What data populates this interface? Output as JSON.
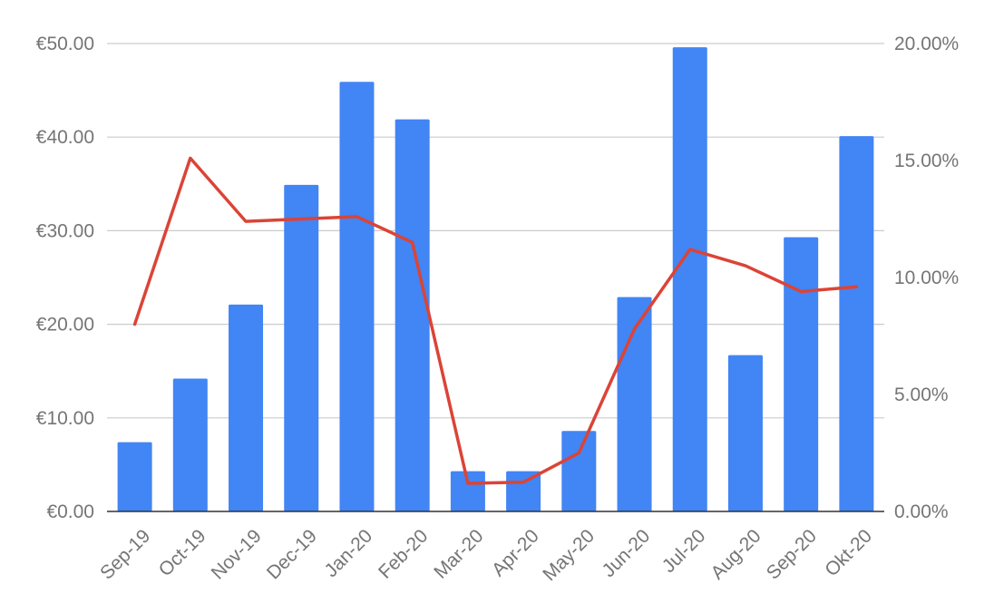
{
  "chart_data": {
    "type": "bar",
    "title": "",
    "categories": [
      "Sep-19",
      "Oct-19",
      "Nov-19",
      "Dec-19",
      "Jan-20",
      "Feb-20",
      "Mar-20",
      "Apr-20",
      "May-20",
      "Jun-20",
      "Jul-20",
      "Aug-20",
      "Sep-20",
      "Okt-20"
    ],
    "series": [
      {
        "type": "bar",
        "axis": "left",
        "color": "#4285f4",
        "values": [
          7.4,
          14.2,
          22.1,
          34.9,
          45.9,
          41.9,
          4.3,
          4.3,
          8.6,
          22.9,
          49.6,
          16.7,
          29.3,
          40.1
        ]
      },
      {
        "type": "line",
        "axis": "right",
        "color": "#db4437",
        "values": [
          8.0,
          15.1,
          12.4,
          12.5,
          12.6,
          11.5,
          1.2,
          1.25,
          2.5,
          7.8,
          11.2,
          10.5,
          9.4,
          9.6
        ]
      }
    ],
    "y_left": {
      "ylim": [
        0,
        50
      ],
      "ticks": [
        0,
        10,
        20,
        30,
        40,
        50
      ],
      "tick_labels": [
        "€0.00",
        "€10.00",
        "€20.00",
        "€30.00",
        "€40.00",
        "€50.00"
      ]
    },
    "y_right": {
      "ylim": [
        0,
        20
      ],
      "ticks": [
        0,
        5,
        10,
        15,
        20
      ],
      "tick_labels": [
        "0.00%",
        "5.00%",
        "10.00%",
        "15.00%",
        "20.00%"
      ]
    },
    "grid": true,
    "legend": "none",
    "xlabel": "",
    "ylabel": ""
  }
}
